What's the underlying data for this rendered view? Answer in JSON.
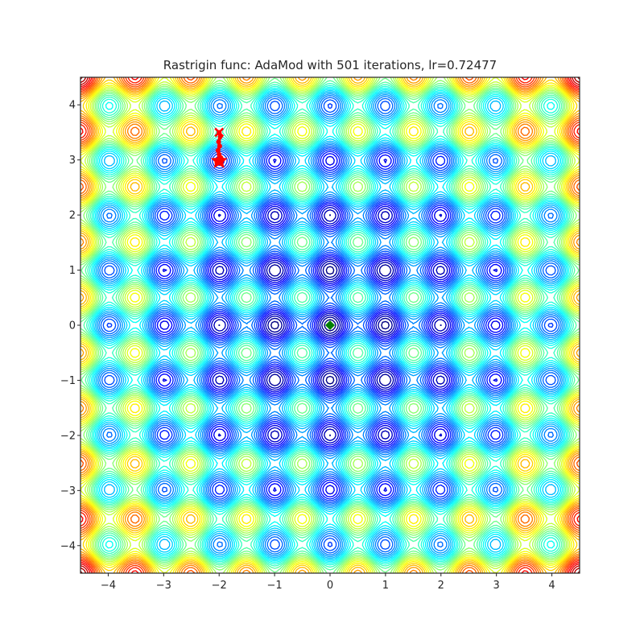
{
  "chart_data": {
    "type": "contour",
    "title": "Rastrigin func: AdaMod with 501 iterations, lr=0.72477",
    "xlabel": "",
    "ylabel": "",
    "xlim": [
      -4.5,
      4.5
    ],
    "ylim": [
      -4.5,
      4.5
    ],
    "xticks": [
      -4,
      -3,
      -2,
      -1,
      0,
      1,
      2,
      3,
      4
    ],
    "yticks": [
      -4,
      -3,
      -2,
      -1,
      0,
      1,
      2,
      3,
      4
    ],
    "xtick_labels": [
      "−4",
      "−3",
      "−2",
      "−1",
      "0",
      "1",
      "2",
      "3",
      "4"
    ],
    "ytick_labels": [
      "−4",
      "−3",
      "−2",
      "−1",
      "0",
      "1",
      "2",
      "3",
      "4"
    ],
    "grid": false,
    "function": "rastrigin",
    "colormap": "jet",
    "global_minimum": {
      "x": 0,
      "y": 0,
      "color": "#008000",
      "marker": "diamond"
    },
    "optimizer_path": {
      "color": "#ff0000",
      "start": {
        "x": -2.0,
        "y": 3.5
      },
      "end": {
        "x": -2.0,
        "y": 2.98
      },
      "points": [
        {
          "x": -2.0,
          "y": 3.5
        },
        {
          "x": -1.98,
          "y": 3.42
        },
        {
          "x": -2.01,
          "y": 3.33
        },
        {
          "x": -1.99,
          "y": 3.25
        },
        {
          "x": -2.02,
          "y": 3.17
        },
        {
          "x": -2.0,
          "y": 3.1
        },
        {
          "x": -1.97,
          "y": 3.04
        },
        {
          "x": -2.03,
          "y": 3.0
        },
        {
          "x": -1.96,
          "y": 2.97
        },
        {
          "x": -2.04,
          "y": 2.95
        },
        {
          "x": -2.0,
          "y": 2.98
        }
      ]
    }
  }
}
